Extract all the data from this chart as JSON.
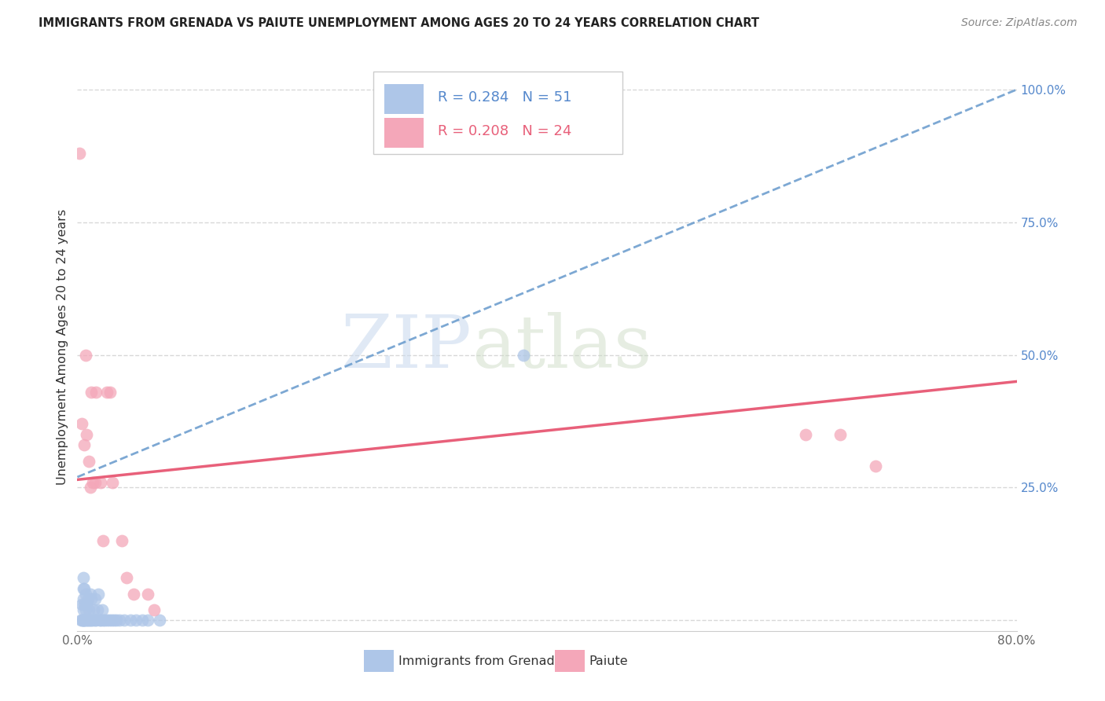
{
  "title": "IMMIGRANTS FROM GRENADA VS PAIUTE UNEMPLOYMENT AMONG AGES 20 TO 24 YEARS CORRELATION CHART",
  "source": "Source: ZipAtlas.com",
  "ylabel": "Unemployment Among Ages 20 to 24 years",
  "xlim": [
    0,
    0.8
  ],
  "ylim": [
    -0.02,
    1.05
  ],
  "xticks": [
    0.0,
    0.1,
    0.2,
    0.3,
    0.4,
    0.5,
    0.6,
    0.7,
    0.8
  ],
  "xticklabels": [
    "0.0%",
    "",
    "",
    "",
    "",
    "",
    "",
    "",
    "80.0%"
  ],
  "yticks": [
    0.0,
    0.25,
    0.5,
    0.75,
    1.0
  ],
  "yticklabels": [
    "",
    "25.0%",
    "50.0%",
    "75.0%",
    "100.0%"
  ],
  "blue_color": "#aec6e8",
  "pink_color": "#f4a7b9",
  "blue_line_color": "#6699cc",
  "pink_line_color": "#e8607a",
  "watermark_zip": "ZIP",
  "watermark_atlas": "atlas",
  "blue_scatter_x": [
    0.003,
    0.004,
    0.004,
    0.005,
    0.005,
    0.005,
    0.005,
    0.005,
    0.005,
    0.005,
    0.006,
    0.006,
    0.006,
    0.007,
    0.007,
    0.007,
    0.008,
    0.008,
    0.009,
    0.009,
    0.01,
    0.01,
    0.011,
    0.011,
    0.012,
    0.012,
    0.013,
    0.014,
    0.015,
    0.015,
    0.016,
    0.017,
    0.018,
    0.019,
    0.02,
    0.021,
    0.022,
    0.023,
    0.025,
    0.027,
    0.029,
    0.031,
    0.033,
    0.036,
    0.04,
    0.045,
    0.05,
    0.055,
    0.06,
    0.07,
    0.38
  ],
  "blue_scatter_y": [
    0.0,
    0.0,
    0.03,
    0.0,
    0.0,
    0.0,
    0.02,
    0.04,
    0.06,
    0.08,
    0.0,
    0.03,
    0.06,
    0.0,
    0.02,
    0.05,
    0.0,
    0.03,
    0.0,
    0.04,
    0.0,
    0.02,
    0.0,
    0.05,
    0.0,
    0.04,
    0.0,
    0.02,
    0.0,
    0.04,
    0.0,
    0.02,
    0.05,
    0.0,
    0.0,
    0.02,
    0.0,
    0.0,
    0.0,
    0.0,
    0.0,
    0.0,
    0.0,
    0.0,
    0.0,
    0.0,
    0.0,
    0.0,
    0.0,
    0.0,
    0.5
  ],
  "pink_scatter_x": [
    0.002,
    0.004,
    0.006,
    0.007,
    0.008,
    0.01,
    0.011,
    0.012,
    0.013,
    0.015,
    0.016,
    0.02,
    0.022,
    0.025,
    0.028,
    0.03,
    0.038,
    0.042,
    0.048,
    0.06,
    0.065,
    0.62,
    0.65,
    0.68
  ],
  "pink_scatter_y": [
    0.88,
    0.37,
    0.33,
    0.5,
    0.35,
    0.3,
    0.25,
    0.43,
    0.26,
    0.26,
    0.43,
    0.26,
    0.15,
    0.43,
    0.43,
    0.26,
    0.15,
    0.08,
    0.05,
    0.05,
    0.02,
    0.35,
    0.35,
    0.29
  ],
  "blue_trend_x": [
    0.0,
    0.8
  ],
  "blue_trend_y": [
    0.27,
    1.0
  ],
  "pink_trend_x": [
    0.0,
    0.8
  ],
  "pink_trend_y": [
    0.265,
    0.45
  ],
  "grid_color": "#d8d8d8",
  "marker_size": 130
}
